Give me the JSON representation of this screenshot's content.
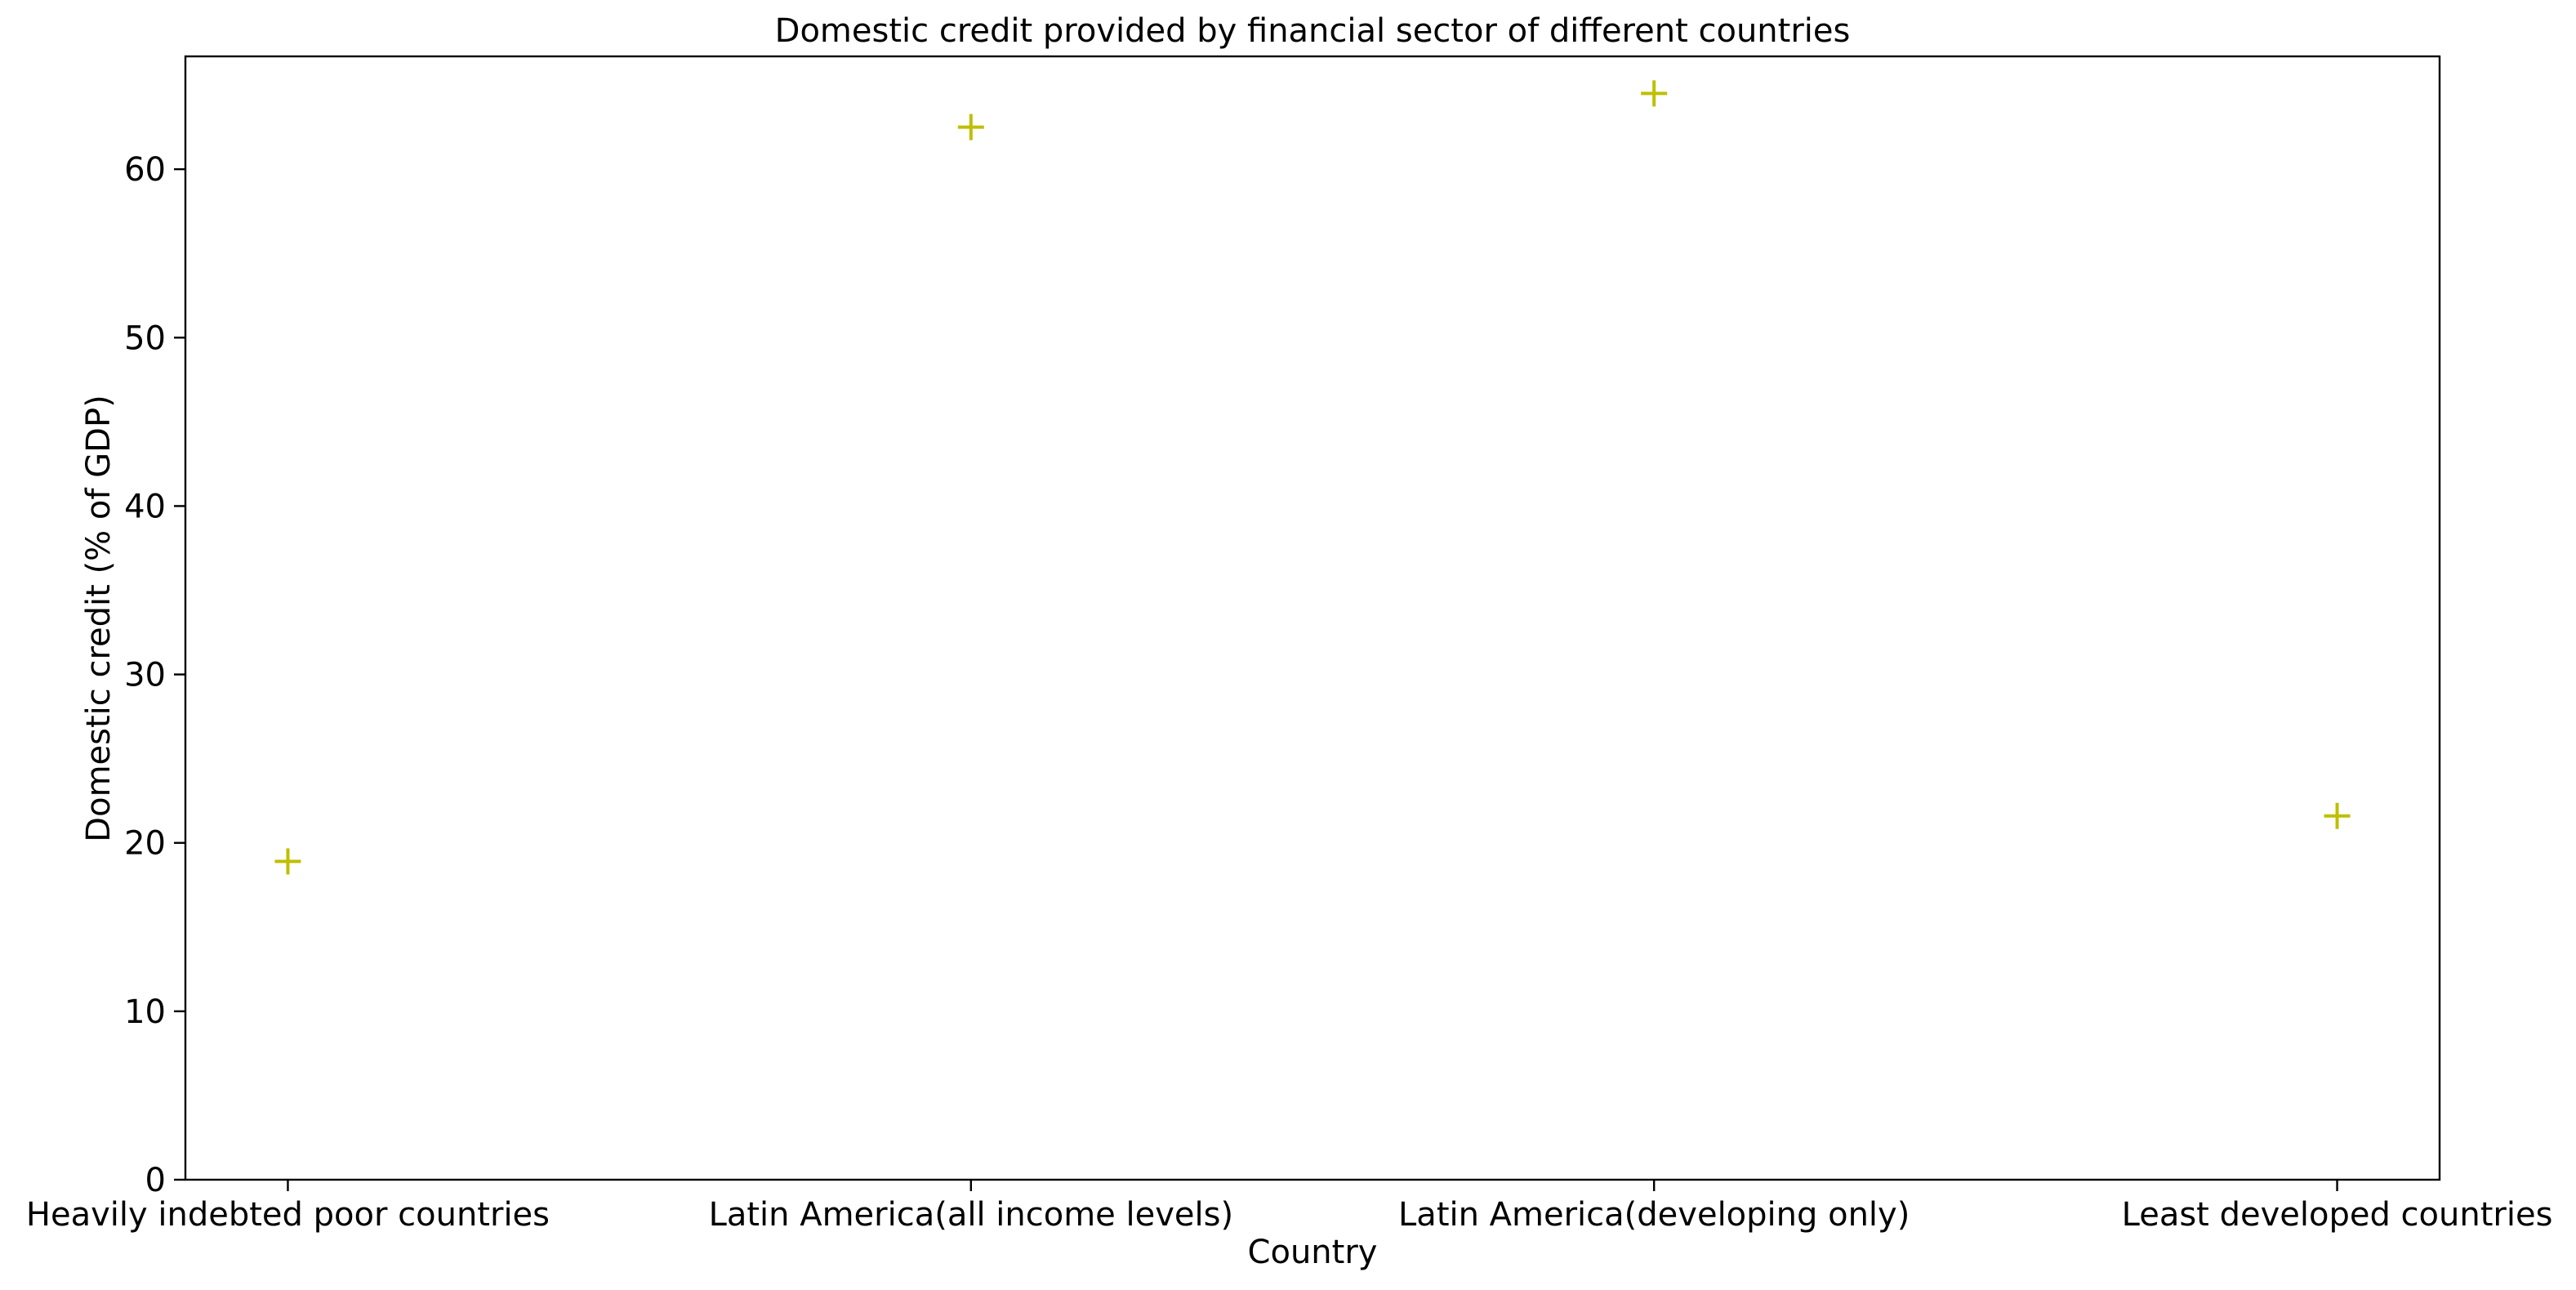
{
  "chart_data": {
    "type": "scatter",
    "title": "Domestic credit provided by financial sector of different countries",
    "xlabel": "Country",
    "ylabel": "Domestic credit (% of GDP)",
    "categories": [
      "Heavily indebted poor countries",
      "Latin America(all income levels)",
      "Latin America(developing only)",
      "Least developed countries"
    ],
    "values": [
      18.9,
      62.5,
      64.5,
      21.6
    ],
    "ylim": [
      0,
      66.7
    ],
    "yticks": [
      0,
      10,
      20,
      30,
      40,
      50,
      60
    ],
    "marker": "plus",
    "color": "#bfbf00",
    "grid": false,
    "legend": "none"
  }
}
